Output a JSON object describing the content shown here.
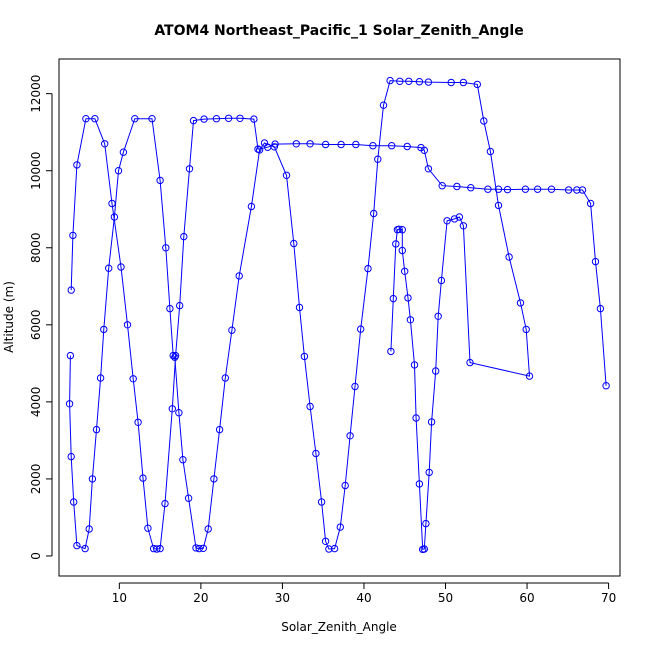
{
  "chart_data": {
    "type": "line",
    "title": "ATOM4 Northeast_Pacific_1 Solar_Zenith_Angle",
    "xlabel": "Solar_Zenith_Angle",
    "ylabel": "Altitude (m)",
    "xlim": [
      2.6,
      71.4
    ],
    "ylim": [
      -520,
      12900
    ],
    "xticks": [
      10,
      20,
      30,
      40,
      50,
      60,
      70
    ],
    "yticks": [
      0,
      2000,
      4000,
      6000,
      8000,
      10000,
      12000
    ],
    "grid": false,
    "legend": "none",
    "color": "#0000ff",
    "series": [
      {
        "marker": "open-circle",
        "points": [
          [
            4.0,
            5200
          ],
          [
            3.9,
            3950
          ],
          [
            4.1,
            2580
          ],
          [
            4.4,
            1400
          ],
          [
            4.8,
            270
          ],
          [
            5.8,
            190
          ],
          [
            6.3,
            700
          ],
          [
            6.7,
            2000
          ],
          [
            7.2,
            3280
          ],
          [
            7.7,
            4620
          ],
          [
            8.1,
            5880
          ],
          [
            8.7,
            7470
          ],
          [
            9.4,
            8800
          ],
          [
            9.9,
            10000
          ],
          [
            10.5,
            10480
          ],
          [
            11.9,
            11350
          ],
          [
            14.0,
            11350
          ],
          [
            15.0,
            9750
          ],
          [
            15.7,
            8000
          ],
          [
            16.2,
            6420
          ],
          [
            16.6,
            5200
          ],
          [
            16.8,
            5160
          ],
          [
            17.3,
            3720
          ],
          [
            17.8,
            2500
          ],
          [
            18.5,
            1500
          ],
          [
            19.4,
            210
          ],
          [
            19.8,
            190
          ],
          [
            20.3,
            200
          ],
          [
            20.9,
            700
          ],
          [
            21.6,
            2000
          ],
          [
            22.3,
            3280
          ],
          [
            23.0,
            4620
          ],
          [
            23.8,
            5860
          ],
          [
            24.7,
            7270
          ],
          [
            26.2,
            9070
          ],
          [
            27.2,
            10540
          ],
          [
            27.8,
            10720
          ],
          [
            29.0,
            10620
          ],
          [
            30.5,
            9880
          ],
          [
            31.4,
            8110
          ],
          [
            32.1,
            6450
          ],
          [
            32.7,
            5180
          ],
          [
            33.4,
            3880
          ],
          [
            34.1,
            2660
          ],
          [
            34.8,
            1400
          ],
          [
            35.3,
            380
          ],
          [
            35.7,
            180
          ],
          [
            36.4,
            190
          ],
          [
            37.1,
            750
          ],
          [
            37.7,
            1830
          ],
          [
            38.3,
            3120
          ],
          [
            38.9,
            4400
          ],
          [
            39.6,
            5890
          ],
          [
            40.5,
            7460
          ],
          [
            41.2,
            8890
          ],
          [
            41.7,
            10300
          ],
          [
            42.4,
            11700
          ],
          [
            43.2,
            12340
          ],
          [
            44.4,
            12320
          ],
          [
            45.5,
            12320
          ],
          [
            46.8,
            12310
          ],
          [
            47.9,
            12300
          ],
          [
            50.7,
            12290
          ],
          [
            52.2,
            12290
          ],
          [
            53.9,
            12240
          ],
          [
            54.7,
            11290
          ],
          [
            55.5,
            10500
          ],
          [
            56.5,
            9100
          ],
          [
            57.8,
            7760
          ],
          [
            59.2,
            6570
          ],
          [
            59.9,
            5880
          ],
          [
            60.3,
            4670
          ],
          [
            53.0,
            5020
          ],
          [
            52.2,
            8570
          ],
          [
            51.7,
            8800
          ],
          [
            51.1,
            8750
          ],
          [
            50.2,
            8700
          ],
          [
            49.5,
            7150
          ],
          [
            49.1,
            6220
          ],
          [
            48.8,
            4800
          ],
          [
            48.3,
            3480
          ],
          [
            48.0,
            2170
          ],
          [
            47.6,
            840
          ],
          [
            47.4,
            180
          ],
          [
            47.2,
            170
          ],
          [
            46.8,
            1870
          ],
          [
            46.4,
            3580
          ],
          [
            46.2,
            4960
          ],
          [
            45.7,
            6130
          ],
          [
            45.4,
            6700
          ],
          [
            45.0,
            7390
          ],
          [
            44.7,
            7930
          ],
          [
            44.7,
            8470
          ],
          [
            44.3,
            8480
          ],
          [
            44.1,
            8470
          ],
          [
            43.9,
            8100
          ],
          [
            43.6,
            6680
          ],
          [
            43.3,
            5310
          ]
        ]
      },
      {
        "marker": "open-circle",
        "points": [
          [
            4.1,
            6900
          ],
          [
            4.3,
            8320
          ],
          [
            4.8,
            10150
          ],
          [
            5.9,
            11350
          ],
          [
            7.0,
            11350
          ],
          [
            8.2,
            10700
          ],
          [
            9.1,
            9150
          ],
          [
            10.2,
            7500
          ],
          [
            11.0,
            6000
          ],
          [
            11.7,
            4600
          ],
          [
            12.3,
            3470
          ],
          [
            12.9,
            2020
          ],
          [
            13.5,
            720
          ],
          [
            14.2,
            190
          ],
          [
            14.6,
            180
          ],
          [
            15.0,
            190
          ],
          [
            15.6,
            1360
          ],
          [
            16.5,
            3820
          ],
          [
            16.9,
            5200
          ],
          [
            17.4,
            6500
          ],
          [
            17.9,
            8290
          ],
          [
            18.6,
            10050
          ],
          [
            19.1,
            11300
          ],
          [
            20.4,
            11340
          ],
          [
            21.9,
            11350
          ],
          [
            23.4,
            11360
          ],
          [
            24.8,
            11360
          ],
          [
            26.5,
            11340
          ],
          [
            27.0,
            10560
          ],
          [
            28.2,
            10610
          ],
          [
            29.1,
            10690
          ],
          [
            31.7,
            10700
          ],
          [
            33.4,
            10700
          ],
          [
            35.3,
            10680
          ],
          [
            37.2,
            10680
          ],
          [
            39.0,
            10680
          ],
          [
            41.1,
            10650
          ],
          [
            43.4,
            10650
          ],
          [
            45.3,
            10630
          ],
          [
            47.0,
            10600
          ],
          [
            47.4,
            10530
          ],
          [
            47.9,
            10050
          ],
          [
            49.6,
            9610
          ],
          [
            51.4,
            9590
          ],
          [
            53.1,
            9560
          ],
          [
            55.2,
            9520
          ],
          [
            56.5,
            9520
          ],
          [
            57.6,
            9510
          ],
          [
            59.8,
            9520
          ],
          [
            61.3,
            9520
          ],
          [
            63.0,
            9520
          ],
          [
            65.1,
            9500
          ],
          [
            66.1,
            9500
          ],
          [
            66.8,
            9500
          ],
          [
            67.8,
            9150
          ],
          [
            68.4,
            7640
          ],
          [
            69.0,
            6420
          ],
          [
            69.7,
            4420
          ]
        ]
      }
    ]
  }
}
